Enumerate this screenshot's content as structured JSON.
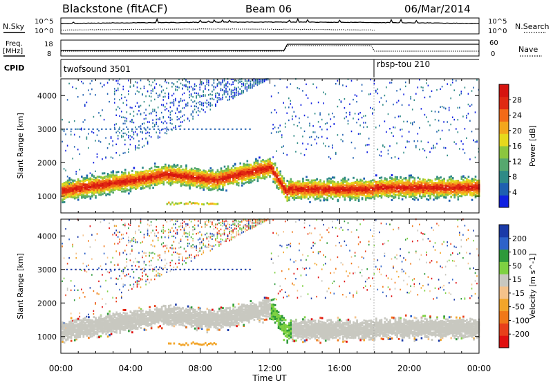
{
  "header": {
    "station": "Blackstone (fitACF)",
    "beam": "Beam 06",
    "date": "06/Mar/2014"
  },
  "noise_panel": {
    "left_label": "N.Sky",
    "right_label": "N.Search",
    "left_ticks": [
      "10^5",
      "10^0"
    ],
    "right_ticks": [
      "10^5",
      "10^0"
    ]
  },
  "freq_panel": {
    "left_label_1": "Freq.",
    "left_label_2": "[MHz]",
    "right_label": "Nave",
    "left_ticks": [
      "18",
      "8"
    ],
    "right_ticks": [
      "60",
      "0"
    ]
  },
  "cpid_panel": {
    "label": "CPID",
    "segments": [
      {
        "name": "twofsound 3501",
        "start_hour": 0,
        "end_hour": 18
      },
      {
        "name": "rbsp-tou 210",
        "start_hour": 18,
        "end_hour": 24
      }
    ]
  },
  "chart_data": [
    {
      "type": "heatmap",
      "title": "",
      "xlabel": "",
      "ylabel": "Slant Range [km]",
      "xlim_hours": [
        0,
        24
      ],
      "ylim": [
        500,
        4500
      ],
      "yticks": [
        "1000",
        "2000",
        "3000",
        "4000"
      ],
      "colorbar": {
        "label": "Power [dB]",
        "ticks": [
          "4",
          "8",
          "12",
          "16",
          "20",
          "24",
          "28"
        ],
        "colors": [
          "#1020e0",
          "#1e5fb0",
          "#2e8a86",
          "#56a86e",
          "#8cc63e",
          "#e6d81c",
          "#f3a61c",
          "#f26a18",
          "#e02a12",
          "#d6140f"
        ]
      }
    },
    {
      "type": "heatmap",
      "title": "",
      "xlabel": "Time UT",
      "ylabel": "Slant Range [km]",
      "xlim_hours": [
        0,
        24
      ],
      "ylim": [
        500,
        4500
      ],
      "yticks": [
        "1000",
        "2000",
        "3000",
        "4000"
      ],
      "colorbar": {
        "label": "Velocity [m s^-1]",
        "ticks": [
          "200",
          "100",
          "50",
          "15",
          "-15",
          "-50",
          "-100",
          "-200"
        ],
        "colors": [
          "#1a3aa8",
          "#2d62c9",
          "#2d9a3a",
          "#7ed142",
          "#c8c8c0",
          "#f4c28a",
          "#f2a52a",
          "#f07818",
          "#e8401a",
          "#e01010"
        ]
      }
    }
  ],
  "time_axis": {
    "label": "Time UT",
    "ticks": [
      "00:00",
      "04:00",
      "08:00",
      "12:00",
      "16:00",
      "20:00",
      "00:00"
    ]
  }
}
